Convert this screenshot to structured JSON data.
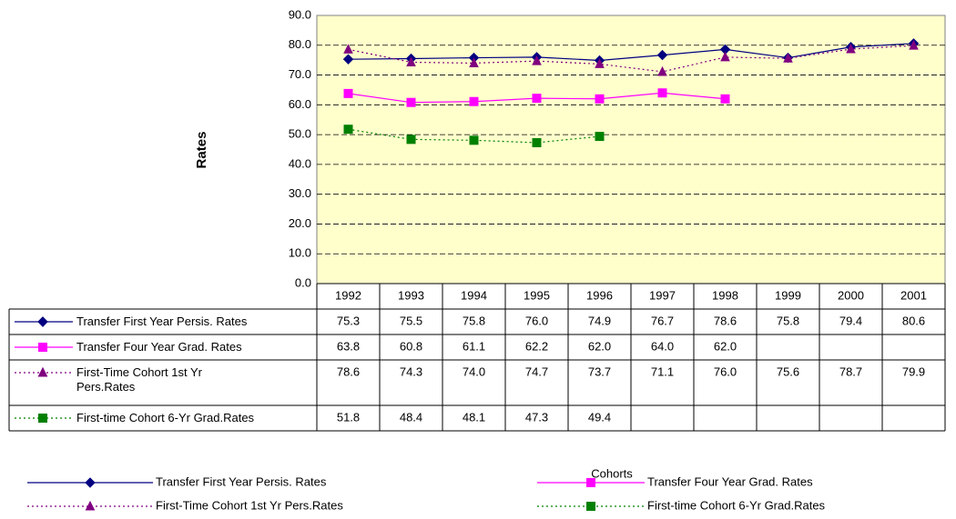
{
  "chart_data": {
    "type": "line",
    "y_axis_label": "Rates",
    "x_axis_label": "Cohorts",
    "categories": [
      "1992",
      "1993",
      "1994",
      "1995",
      "1996",
      "1997",
      "1998",
      "1999",
      "2000",
      "2001"
    ],
    "series": [
      {
        "name": "Transfer First Year Persis. Rates",
        "color": "#000080",
        "marker": "diamond",
        "line_style": "solid",
        "values": [
          75.3,
          75.5,
          75.8,
          76.0,
          74.9,
          76.7,
          78.6,
          75.8,
          79.4,
          80.6
        ],
        "value_labels": [
          "75.3",
          "75.5",
          "75.8",
          "76.0",
          "74.9",
          "76.7",
          "78.6",
          "75.8",
          "79.4",
          "80.6"
        ]
      },
      {
        "name": "Transfer Four Year Grad. Rates",
        "color": "#ff00ff",
        "marker": "square",
        "line_style": "solid",
        "values": [
          63.8,
          60.8,
          61.1,
          62.2,
          62.0,
          64.0,
          62.0,
          null,
          null,
          null
        ],
        "value_labels": [
          "63.8",
          "60.8",
          "61.1",
          "62.2",
          "62.0",
          "64.0",
          "62.0",
          null,
          null,
          null
        ]
      },
      {
        "name": "First-Time Cohort 1st Yr Pers.Rates",
        "color": "#800080",
        "marker": "triangle",
        "line_style": "dotted",
        "values": [
          78.6,
          74.3,
          74.0,
          74.7,
          73.7,
          71.1,
          76.0,
          75.6,
          78.7,
          79.9
        ],
        "value_labels": [
          "78.6",
          "74.3",
          "74.0",
          "74.7",
          "73.7",
          "71.1",
          "76.0",
          "75.6",
          "78.7",
          "79.9"
        ]
      },
      {
        "name": "First-time Cohort 6-Yr Grad.Rates",
        "color": "#008000",
        "marker": "square",
        "line_style": "dotted",
        "values": [
          51.8,
          48.4,
          48.1,
          47.3,
          49.4,
          null,
          null,
          null,
          null,
          null
        ],
        "value_labels": [
          "51.8",
          "48.4",
          "48.1",
          "47.3",
          "49.4",
          null,
          null,
          null,
          null,
          null
        ]
      }
    ],
    "ylim": [
      0,
      90
    ],
    "yticks": [
      {
        "value": 0,
        "label": "0.0"
      },
      {
        "value": 10,
        "label": "10.0"
      },
      {
        "value": 20,
        "label": "20.0"
      },
      {
        "value": 30,
        "label": "30.0"
      },
      {
        "value": 40,
        "label": "40.0"
      },
      {
        "value": 50,
        "label": "50.0"
      },
      {
        "value": 60,
        "label": "60.0"
      },
      {
        "value": 70,
        "label": "70.0"
      },
      {
        "value": 80,
        "label": "80.0"
      },
      {
        "value": 90,
        "label": "90.0"
      }
    ],
    "grid": true,
    "legend": "bottom"
  }
}
